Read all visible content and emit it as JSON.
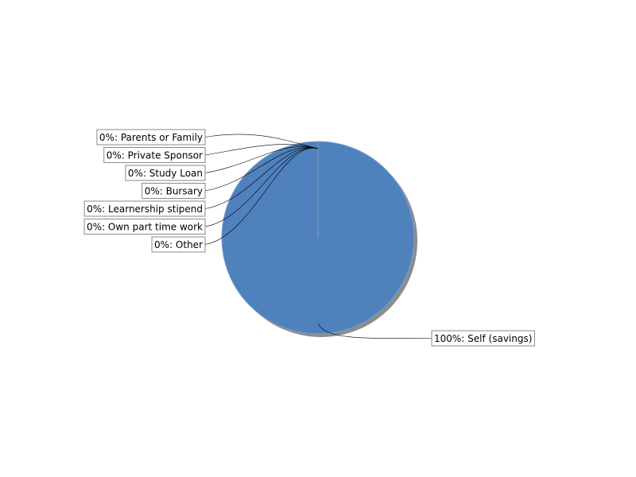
{
  "chart_data": {
    "type": "pie",
    "slices": [
      {
        "label": "0%: Parents or Family",
        "value": 0
      },
      {
        "label": "0%: Private Sponsor",
        "value": 0
      },
      {
        "label": "0%: Study Loan",
        "value": 0
      },
      {
        "label": "0%: Bursary",
        "value": 0
      },
      {
        "label": "0%: Learnership stipend",
        "value": 0
      },
      {
        "label": "0%: Own part time work",
        "value": 0
      },
      {
        "label": "0%: Other",
        "value": 0
      },
      {
        "label": "100%: Self (savings)",
        "value": 100
      }
    ],
    "colors": {
      "slice": "#4f81bd",
      "slice_edge": "#7aa0d0",
      "shadow": "#8c8c8c"
    }
  }
}
